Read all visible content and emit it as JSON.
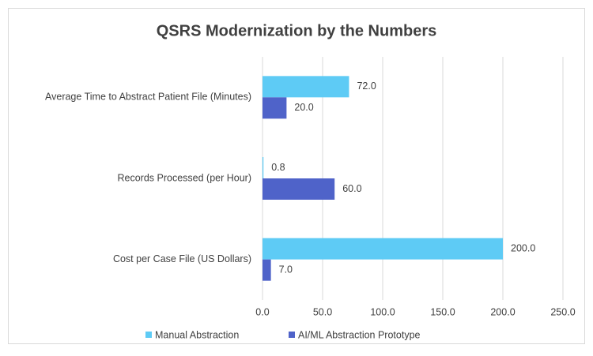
{
  "chart_data": {
    "type": "hbar",
    "title": "QSRS Modernization by the Numbers",
    "categories": [
      "Average Time to Abstract Patient File (Minutes)",
      "Records Processed (per Hour)",
      "Cost per Case File (US Dollars)"
    ],
    "series": [
      {
        "name": "Manual Abstraction",
        "color": "#5ecbf5",
        "values": [
          72,
          0.8,
          200
        ],
        "value_labels": [
          "72.0",
          "0.8",
          "200.0"
        ]
      },
      {
        "name": "AI/ML Abstraction Prototype",
        "color": "#4f63c9",
        "values": [
          20,
          60,
          7
        ],
        "value_labels": [
          "20.0",
          "60.0",
          "7.0"
        ]
      }
    ],
    "xlim": [
      0,
      250
    ],
    "xticks": [
      {
        "value": 0,
        "label": "0.0"
      },
      {
        "value": 50,
        "label": "50.0"
      },
      {
        "value": 100,
        "label": "100.0"
      },
      {
        "value": 150,
        "label": "150.0"
      },
      {
        "value": 200,
        "label": "200.0"
      },
      {
        "value": 250,
        "label": "250.0"
      }
    ],
    "grid": true,
    "legend": "bottom"
  }
}
